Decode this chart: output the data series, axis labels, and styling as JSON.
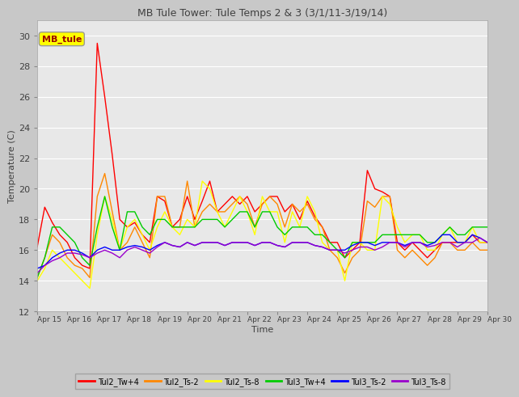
{
  "title": "MB Tule Tower: Tule Temps 2 & 3 (3/1/11-3/19/14)",
  "xlabel": "Time",
  "ylabel": "Temperature (C)",
  "ylim": [
    12,
    31
  ],
  "yticks": [
    12,
    14,
    16,
    18,
    20,
    22,
    24,
    26,
    28,
    30
  ],
  "xlim": [
    0,
    15
  ],
  "xtick_labels": [
    "Apr 15",
    "Apr 16",
    "Apr 17",
    "Apr 18",
    "Apr 19",
    "Apr 20",
    "Apr 21",
    "Apr 22",
    "Apr 23",
    "Apr 24",
    "Apr 25",
    "Apr 26",
    "Apr 27",
    "Apr 28",
    "Apr 29",
    "Apr 30"
  ],
  "fig_bg_color": "#c8c8c8",
  "plot_bg_color": "#e8e8e8",
  "grid_color": "#ffffff",
  "legend_label": "MB_tule",
  "legend_label_color": "#990000",
  "legend_box_facecolor": "#ffff00",
  "legend_box_edgecolor": "#999999",
  "series": {
    "Tul2_Tw+4": {
      "color": "#ff0000",
      "x": [
        0,
        0.25,
        0.5,
        0.75,
        1.0,
        1.25,
        1.5,
        1.75,
        2.0,
        2.25,
        2.5,
        2.75,
        3.0,
        3.25,
        3.5,
        3.75,
        4.0,
        4.25,
        4.5,
        4.75,
        5.0,
        5.25,
        5.5,
        5.75,
        6.0,
        6.25,
        6.5,
        6.75,
        7.0,
        7.25,
        7.5,
        7.75,
        8.0,
        8.25,
        8.5,
        8.75,
        9.0,
        9.25,
        9.5,
        9.75,
        10.0,
        10.25,
        10.5,
        10.75,
        11.0,
        11.25,
        11.5,
        11.75,
        12.0,
        12.25,
        12.5,
        12.75,
        13.0,
        13.25,
        13.5,
        13.75,
        14.0,
        14.25,
        14.5,
        14.75,
        15.0
      ],
      "y": [
        16.2,
        18.8,
        17.8,
        17.0,
        16.5,
        15.5,
        15.0,
        14.8,
        29.5,
        26.0,
        22.2,
        18.0,
        17.5,
        17.8,
        17.0,
        16.5,
        19.5,
        19.2,
        17.5,
        18.0,
        19.5,
        18.0,
        19.2,
        20.5,
        18.5,
        19.0,
        19.5,
        19.0,
        19.5,
        18.5,
        19.0,
        19.5,
        19.5,
        18.5,
        19.0,
        18.0,
        19.2,
        18.2,
        17.5,
        16.5,
        16.5,
        15.5,
        16.0,
        16.5,
        21.2,
        20.0,
        19.8,
        19.5,
        16.5,
        16.0,
        16.5,
        16.0,
        15.5,
        16.0,
        16.5,
        16.5,
        16.5,
        16.5,
        17.0,
        16.5,
        16.5
      ]
    },
    "Tul2_Ts-2": {
      "color": "#ff8800",
      "x": [
        0,
        0.25,
        0.5,
        0.75,
        1.0,
        1.25,
        1.5,
        1.75,
        2.0,
        2.25,
        2.5,
        2.75,
        3.0,
        3.25,
        3.5,
        3.75,
        4.0,
        4.25,
        4.5,
        4.75,
        5.0,
        5.25,
        5.5,
        5.75,
        6.0,
        6.25,
        6.5,
        6.75,
        7.0,
        7.25,
        7.5,
        7.75,
        8.0,
        8.25,
        8.5,
        8.75,
        9.0,
        9.25,
        9.5,
        9.75,
        10.0,
        10.25,
        10.5,
        10.75,
        11.0,
        11.25,
        11.5,
        11.75,
        12.0,
        12.25,
        12.5,
        12.75,
        13.0,
        13.25,
        13.5,
        13.75,
        14.0,
        14.25,
        14.5,
        14.75,
        15.0
      ],
      "y": [
        14.2,
        15.5,
        17.0,
        16.5,
        15.5,
        15.0,
        14.8,
        14.2,
        19.5,
        21.0,
        18.5,
        16.0,
        16.5,
        17.5,
        16.5,
        15.5,
        19.5,
        19.5,
        17.5,
        17.5,
        20.5,
        17.5,
        18.5,
        19.0,
        18.5,
        18.5,
        19.0,
        19.5,
        19.0,
        17.5,
        19.0,
        19.5,
        19.0,
        17.5,
        19.0,
        18.5,
        19.0,
        18.0,
        17.5,
        16.0,
        15.5,
        14.5,
        15.5,
        16.0,
        19.2,
        18.8,
        19.5,
        19.5,
        16.0,
        15.5,
        16.0,
        15.5,
        15.0,
        15.5,
        16.5,
        16.5,
        16.0,
        16.0,
        16.5,
        16.0,
        16.0
      ]
    },
    "Tul2_Ts-8": {
      "color": "#ffff00",
      "x": [
        0,
        0.25,
        0.5,
        0.75,
        1.0,
        1.25,
        1.5,
        1.75,
        2.0,
        2.25,
        2.5,
        2.75,
        3.0,
        3.25,
        3.5,
        3.75,
        4.0,
        4.25,
        4.5,
        4.75,
        5.0,
        5.25,
        5.5,
        5.75,
        6.0,
        6.25,
        6.5,
        6.75,
        7.0,
        7.25,
        7.5,
        7.75,
        8.0,
        8.25,
        8.5,
        8.75,
        9.0,
        9.25,
        9.5,
        9.75,
        10.0,
        10.25,
        10.5,
        10.75,
        11.0,
        11.25,
        11.5,
        11.75,
        12.0,
        12.25,
        12.5,
        12.75,
        13.0,
        13.25,
        13.5,
        13.75,
        14.0,
        14.25,
        14.5,
        14.75,
        15.0
      ],
      "y": [
        14.0,
        14.8,
        16.0,
        15.5,
        15.0,
        14.5,
        14.0,
        13.5,
        17.0,
        19.5,
        18.0,
        16.0,
        17.5,
        18.0,
        17.0,
        16.0,
        17.5,
        18.5,
        17.5,
        17.0,
        18.0,
        17.5,
        20.5,
        20.0,
        18.5,
        17.5,
        18.5,
        19.5,
        18.5,
        17.0,
        19.5,
        18.5,
        18.5,
        16.5,
        18.5,
        17.5,
        19.5,
        18.5,
        16.5,
        16.0,
        16.0,
        14.0,
        16.5,
        16.5,
        16.0,
        16.0,
        19.5,
        19.0,
        17.5,
        16.5,
        17.0,
        17.0,
        16.0,
        16.0,
        17.0,
        17.5,
        16.5,
        16.5,
        17.5,
        16.5,
        16.5
      ]
    },
    "Tul3_Tw+4": {
      "color": "#00cc00",
      "x": [
        0,
        0.25,
        0.5,
        0.75,
        1.0,
        1.25,
        1.5,
        1.75,
        2.0,
        2.25,
        2.5,
        2.75,
        3.0,
        3.25,
        3.5,
        3.75,
        4.0,
        4.25,
        4.5,
        4.75,
        5.0,
        5.25,
        5.5,
        5.75,
        6.0,
        6.25,
        6.5,
        6.75,
        7.0,
        7.25,
        7.5,
        7.75,
        8.0,
        8.25,
        8.5,
        8.75,
        9.0,
        9.25,
        9.5,
        9.75,
        10.0,
        10.25,
        10.5,
        10.75,
        11.0,
        11.25,
        11.5,
        11.75,
        12.0,
        12.25,
        12.5,
        12.75,
        13.0,
        13.25,
        13.5,
        13.75,
        14.0,
        14.25,
        14.5,
        14.75,
        15.0
      ],
      "y": [
        14.2,
        15.5,
        17.5,
        17.5,
        17.0,
        16.5,
        15.5,
        15.0,
        17.5,
        19.5,
        17.5,
        16.0,
        18.5,
        18.5,
        17.5,
        17.0,
        18.0,
        18.0,
        17.5,
        17.5,
        17.5,
        17.5,
        18.0,
        18.0,
        18.0,
        17.5,
        18.0,
        18.5,
        18.5,
        17.5,
        18.5,
        18.5,
        17.5,
        17.0,
        17.5,
        17.5,
        17.5,
        17.0,
        17.0,
        16.5,
        16.0,
        15.5,
        16.5,
        16.5,
        16.5,
        16.5,
        17.0,
        17.0,
        17.0,
        17.0,
        17.0,
        17.0,
        16.5,
        16.5,
        17.0,
        17.5,
        17.0,
        17.0,
        17.5,
        17.5,
        17.5
      ]
    },
    "Tul3_Ts-2": {
      "color": "#0000ff",
      "x": [
        0,
        0.25,
        0.5,
        0.75,
        1.0,
        1.25,
        1.5,
        1.75,
        2.0,
        2.25,
        2.5,
        2.75,
        3.0,
        3.25,
        3.5,
        3.75,
        4.0,
        4.25,
        4.5,
        4.75,
        5.0,
        5.25,
        5.5,
        5.75,
        6.0,
        6.25,
        6.5,
        6.75,
        7.0,
        7.25,
        7.5,
        7.75,
        8.0,
        8.25,
        8.5,
        8.75,
        9.0,
        9.25,
        9.5,
        9.75,
        10.0,
        10.25,
        10.5,
        10.75,
        11.0,
        11.25,
        11.5,
        11.75,
        12.0,
        12.25,
        12.5,
        12.75,
        13.0,
        13.25,
        13.5,
        13.75,
        14.0,
        14.25,
        14.5,
        14.75,
        15.0
      ],
      "y": [
        14.8,
        15.0,
        15.5,
        15.8,
        16.0,
        16.0,
        15.8,
        15.5,
        16.0,
        16.2,
        16.0,
        16.0,
        16.2,
        16.3,
        16.2,
        16.0,
        16.3,
        16.5,
        16.3,
        16.2,
        16.5,
        16.3,
        16.5,
        16.5,
        16.5,
        16.3,
        16.5,
        16.5,
        16.5,
        16.3,
        16.5,
        16.5,
        16.3,
        16.2,
        16.5,
        16.5,
        16.5,
        16.3,
        16.2,
        16.0,
        16.0,
        16.0,
        16.3,
        16.5,
        16.5,
        16.3,
        16.5,
        16.5,
        16.5,
        16.3,
        16.5,
        16.5,
        16.3,
        16.5,
        17.0,
        17.0,
        16.5,
        16.5,
        17.0,
        16.8,
        16.5
      ]
    },
    "Tul3_Ts-8": {
      "color": "#9900cc",
      "x": [
        0,
        0.25,
        0.5,
        0.75,
        1.0,
        1.25,
        1.5,
        1.75,
        2.0,
        2.25,
        2.5,
        2.75,
        3.0,
        3.25,
        3.5,
        3.75,
        4.0,
        4.25,
        4.5,
        4.75,
        5.0,
        5.25,
        5.5,
        5.75,
        6.0,
        6.25,
        6.5,
        6.75,
        7.0,
        7.25,
        7.5,
        7.75,
        8.0,
        8.25,
        8.5,
        8.75,
        9.0,
        9.25,
        9.5,
        9.75,
        10.0,
        10.25,
        10.5,
        10.75,
        11.0,
        11.25,
        11.5,
        11.75,
        12.0,
        12.25,
        12.5,
        12.75,
        13.0,
        13.25,
        13.5,
        13.75,
        14.0,
        14.25,
        14.5,
        14.75,
        15.0
      ],
      "y": [
        14.5,
        15.0,
        15.3,
        15.5,
        15.8,
        15.8,
        15.7,
        15.5,
        15.8,
        16.0,
        15.8,
        15.5,
        16.0,
        16.2,
        16.0,
        15.8,
        16.2,
        16.5,
        16.3,
        16.2,
        16.5,
        16.3,
        16.5,
        16.5,
        16.5,
        16.3,
        16.5,
        16.5,
        16.5,
        16.3,
        16.5,
        16.5,
        16.3,
        16.2,
        16.5,
        16.5,
        16.5,
        16.3,
        16.2,
        16.0,
        16.0,
        15.8,
        16.0,
        16.2,
        16.2,
        16.0,
        16.2,
        16.5,
        16.5,
        16.2,
        16.5,
        16.5,
        16.2,
        16.3,
        16.5,
        16.5,
        16.2,
        16.5,
        16.5,
        16.8,
        16.5
      ]
    }
  }
}
